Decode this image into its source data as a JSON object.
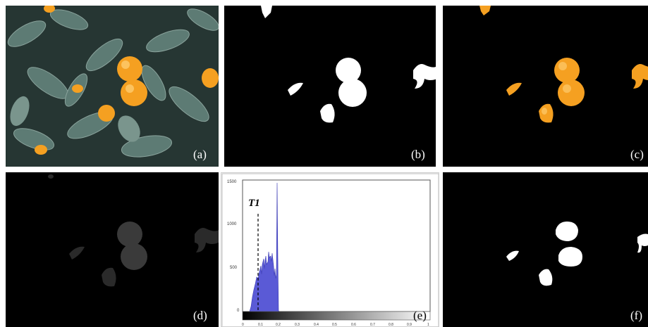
{
  "panels": [
    {
      "id": "a",
      "label": "(a)",
      "description": "orange tree photo"
    },
    {
      "id": "b",
      "label": "(b)",
      "description": "binary mask"
    },
    {
      "id": "c",
      "label": "(c)",
      "description": "masked color fruits"
    },
    {
      "id": "d",
      "label": "(d)",
      "description": "dim grayscale"
    },
    {
      "id": "e",
      "label": "(e)",
      "description": "histogram"
    },
    {
      "id": "f",
      "label": "(f)",
      "description": "final binary mask"
    }
  ],
  "histogram": {
    "threshold_label": "T1",
    "y_ticks": [
      "1500",
      "1000",
      "500",
      "0"
    ],
    "x_ticks": [
      "0",
      "0.1",
      "0.2",
      "0.3",
      "0.4",
      "0.5",
      "0.6",
      "0.7",
      "0.8",
      "0.9",
      "1"
    ],
    "bar_color": "#5a5ad6"
  },
  "colors": {
    "orange": "#f5a021",
    "leaf": "#3f5a4f"
  }
}
